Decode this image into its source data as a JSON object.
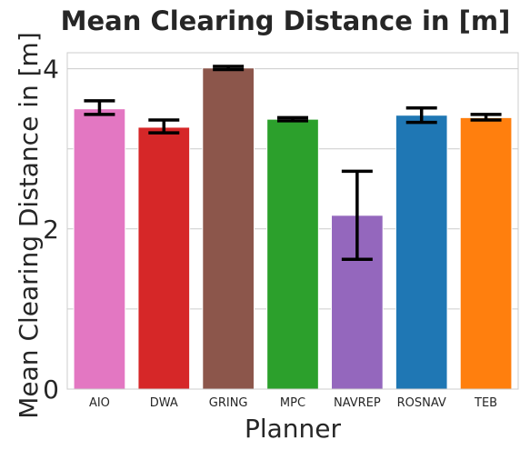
{
  "chart_data": {
    "type": "bar",
    "title": "Mean Clearing Distance in [m]",
    "xlabel": "Planner",
    "ylabel": "Mean Clearing Distance in [m]",
    "categories": [
      "AIO",
      "DWA",
      "GRING",
      "MPC",
      "NAVREP",
      "ROSNAV",
      "TEB"
    ],
    "values": [
      3.5,
      3.27,
      4.01,
      3.37,
      2.17,
      3.42,
      3.39
    ],
    "error_low": [
      3.43,
      3.2,
      3.99,
      3.35,
      1.62,
      3.33,
      3.36
    ],
    "error_high": [
      3.6,
      3.36,
      4.03,
      3.39,
      2.72,
      3.51,
      3.43
    ],
    "colors": [
      "#e377c2",
      "#d62728",
      "#8c564b",
      "#2ca02c",
      "#9467bd",
      "#1f77b4",
      "#ff7f0e"
    ],
    "ylim": [
      0,
      4.2
    ],
    "yticks": [
      "0",
      "2",
      "4"
    ],
    "ytick_values": [
      0,
      2,
      4
    ],
    "grid_values": [
      0,
      1,
      2,
      3,
      4
    ],
    "grid": true,
    "error_color": "#000000",
    "grid_color": "#cccccc"
  }
}
